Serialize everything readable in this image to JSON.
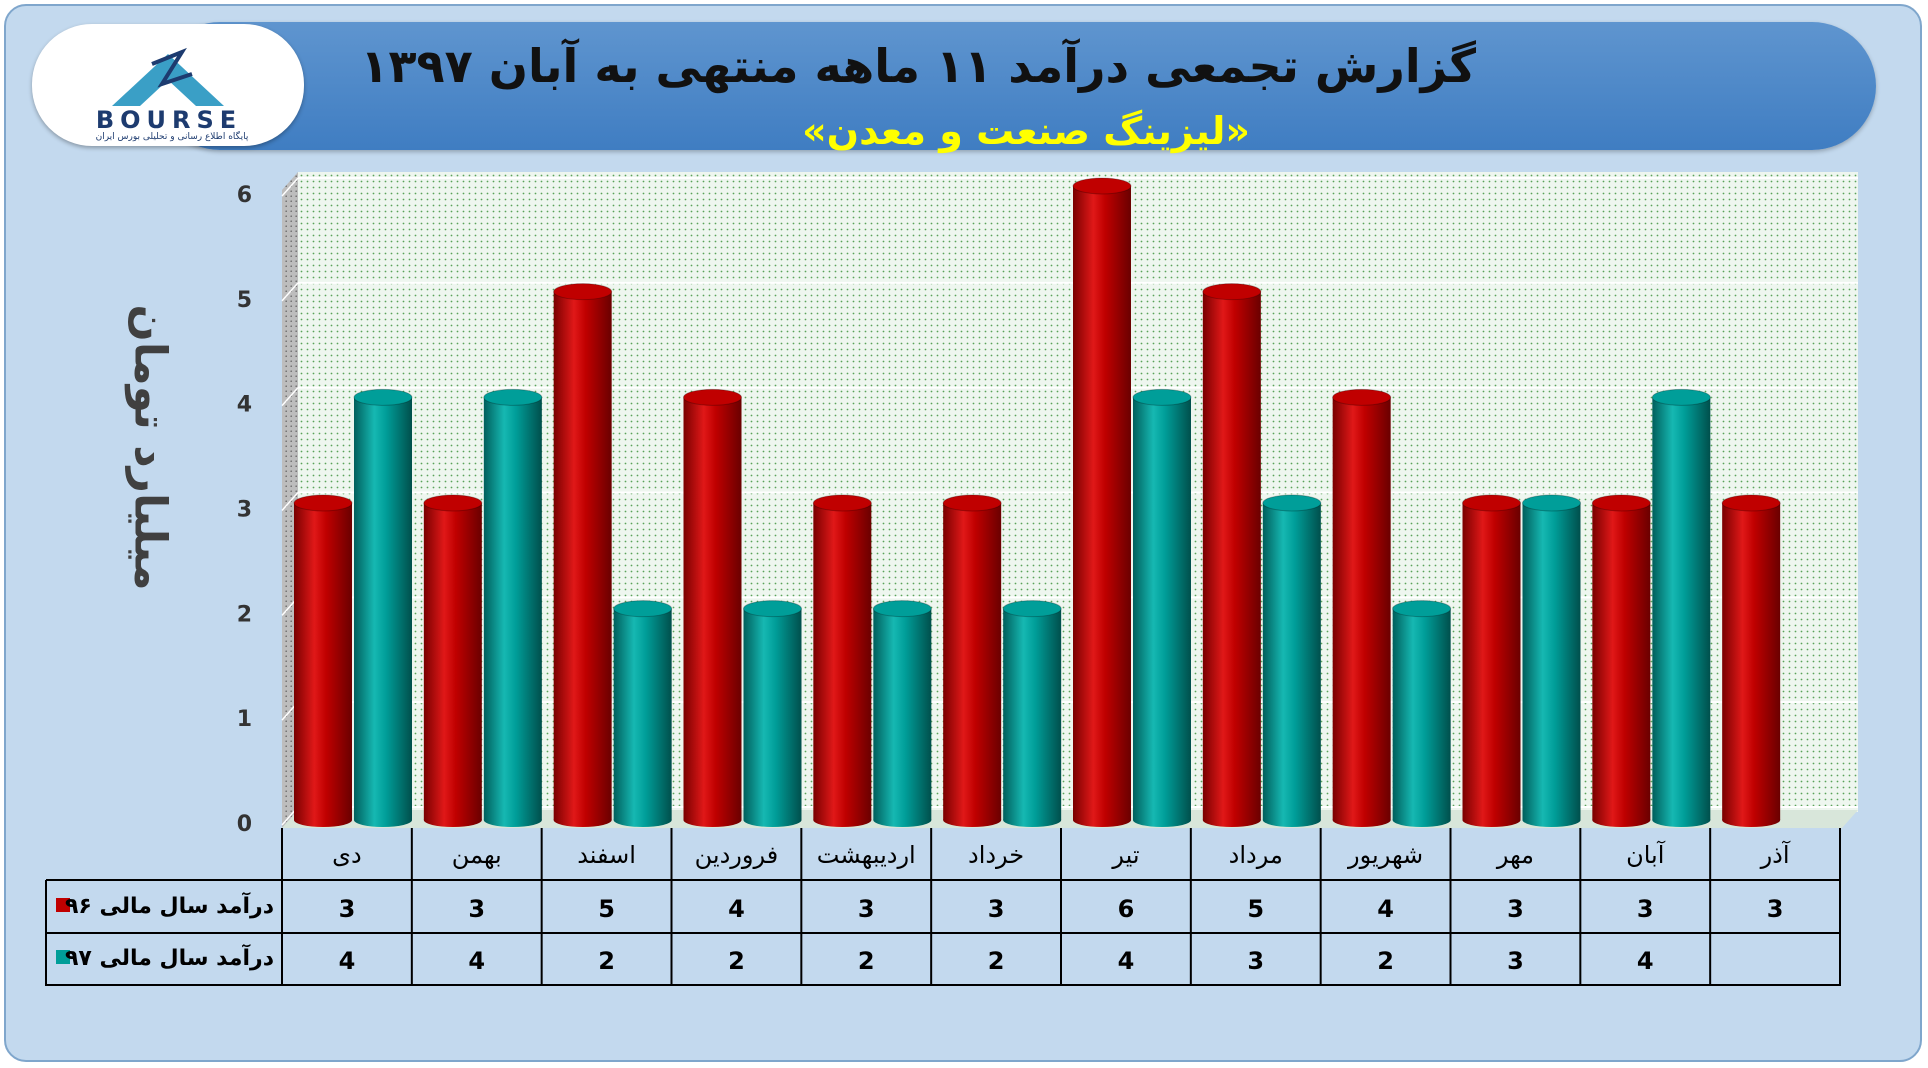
{
  "title": "گزارش تجمعی درآمد ۱۱ ماهه منتهی به آبان ۱۳۹۷",
  "subtitle": "«لیزینگ صنعت و معدن»",
  "logo": {
    "text": "BOURSE",
    "caption": "پایگاه اطلاع رسانی و تحلیلی بورس ایران"
  },
  "colors": {
    "series_96": "#c00000",
    "series_97": "#009e99",
    "plot_bg": "#e3f0e6",
    "frame_bg": "#c3d9ee",
    "header_bg": "#4a86c8"
  },
  "chart_data": {
    "type": "bar",
    "title": "",
    "xlabel": "",
    "ylabel": "میلیارد تومان",
    "ylim": [
      0,
      6
    ],
    "yticks": [
      0,
      1,
      2,
      3,
      4,
      5,
      6
    ],
    "grid": true,
    "categories": [
      "دی",
      "بهمن",
      "اسفند",
      "فروردین",
      "اردیبهشت",
      "خرداد",
      "تیر",
      "مرداد",
      "شهریور",
      "مهر",
      "آبان",
      "آذر"
    ],
    "series": [
      {
        "name": "درآمد سال مالی ۹۶",
        "values": [
          3,
          3,
          5,
          4,
          3,
          3,
          6,
          5,
          4,
          3,
          3,
          3
        ]
      },
      {
        "name": "درآمد سال مالی ۹۷",
        "values": [
          4,
          4,
          2,
          2,
          2,
          2,
          4,
          3,
          2,
          3,
          4,
          null
        ]
      }
    ],
    "legend_position": "data-table"
  }
}
